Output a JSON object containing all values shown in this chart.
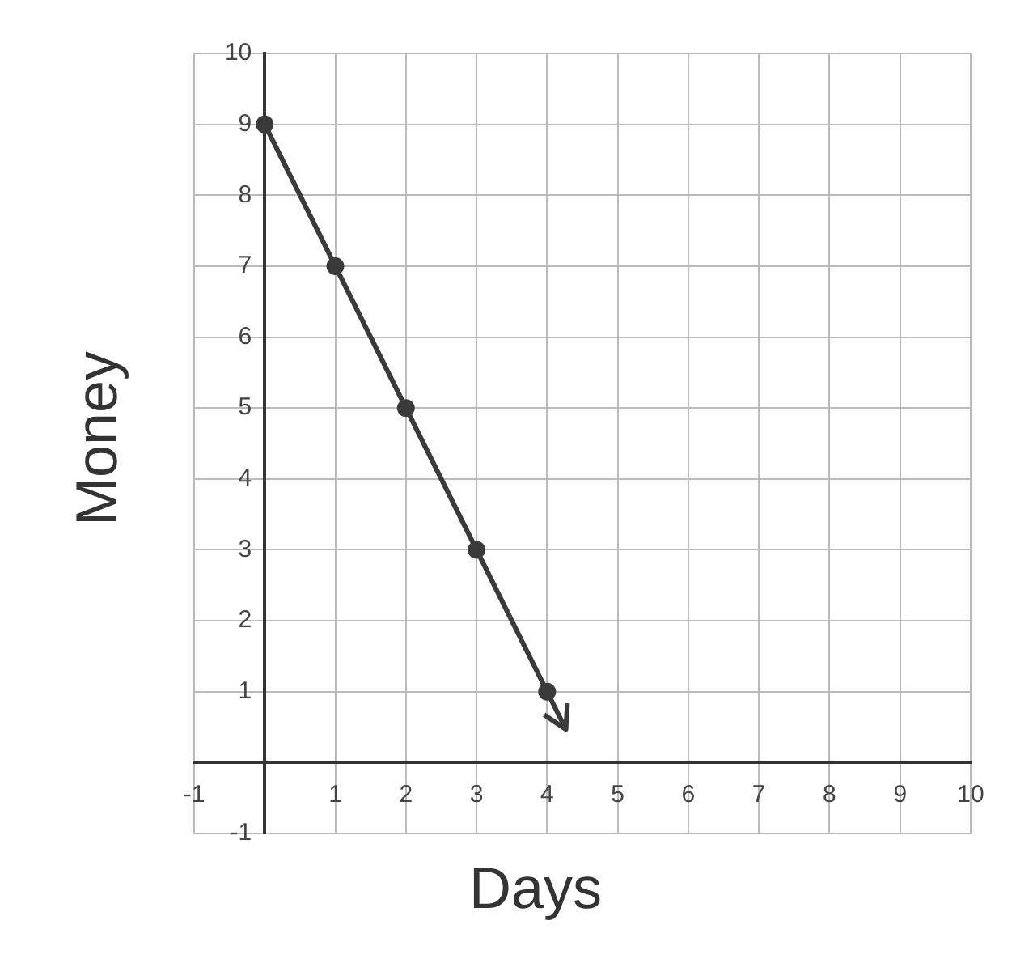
{
  "chart_data": {
    "type": "line",
    "xlabel": "Days",
    "ylabel": "Money",
    "x": [
      0,
      1,
      2,
      3,
      4
    ],
    "series": [
      {
        "color": "#3a3a3a",
        "values": [
          9,
          7,
          5,
          3,
          1
        ]
      }
    ],
    "xlim": [
      -1,
      10
    ],
    "ylim": [
      -1,
      10
    ],
    "xticks": [
      -1,
      {
        "value": 0,
        "label": null
      },
      1,
      2,
      3,
      4,
      5,
      6,
      7,
      8,
      9,
      10
    ],
    "yticks": [
      -1,
      {
        "value": 0,
        "label": null
      },
      1,
      2,
      3,
      4,
      5,
      6,
      7,
      8,
      9,
      10
    ],
    "grid": true,
    "legend": false,
    "marker": "circle",
    "line_style": "solid"
  }
}
